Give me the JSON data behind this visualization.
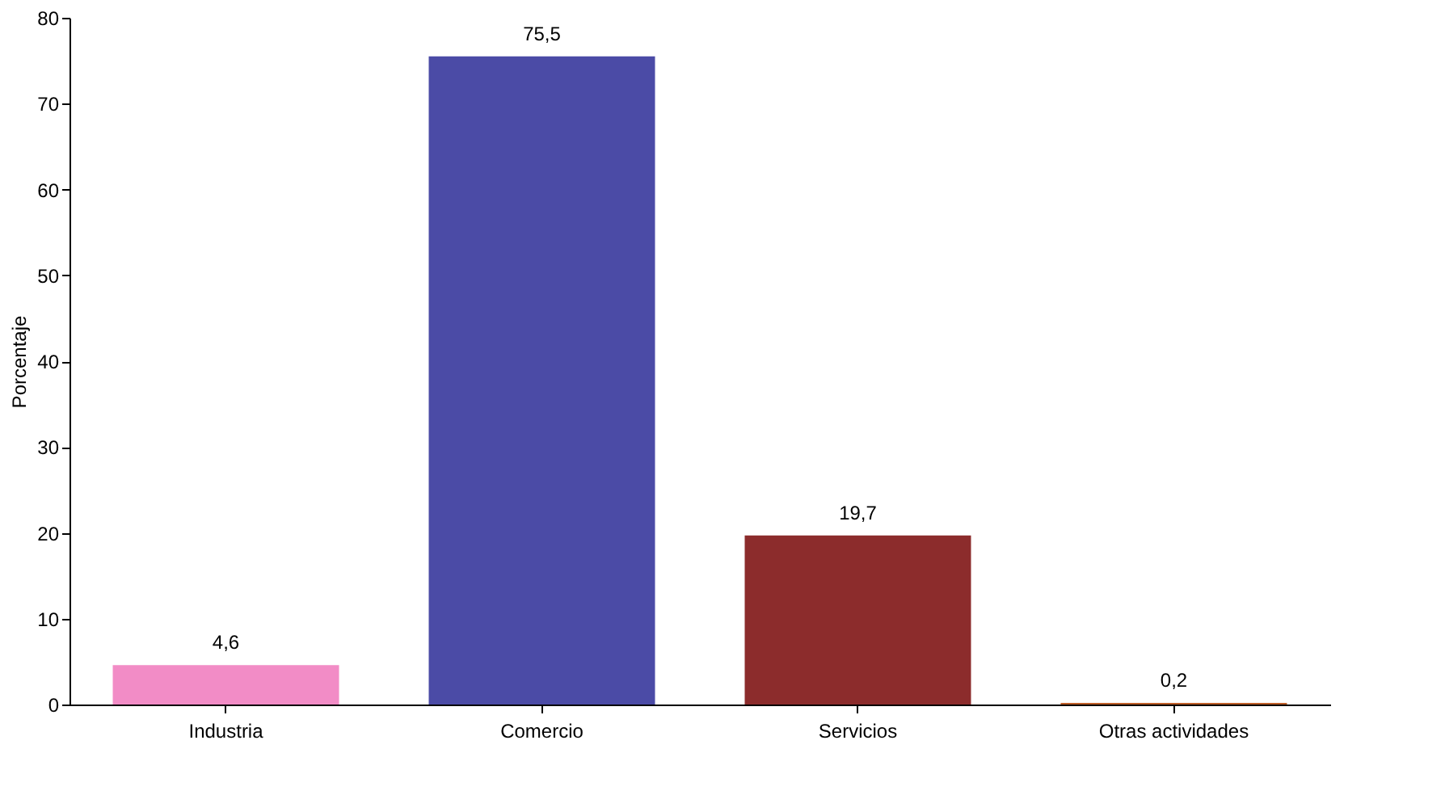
{
  "chart_data": {
    "type": "bar",
    "ylabel": "Porcentaje",
    "categories": [
      "Industria",
      "Comercio",
      "Servicios",
      "Otras actividades"
    ],
    "values": [
      4.6,
      75.5,
      19.7,
      0.2
    ],
    "colors": [
      "#f28cc6",
      "#4b4ba6",
      "#8c2c2c",
      "#c0602a"
    ],
    "value_labels": [
      "4,6",
      "75,5",
      "19,7",
      "0,2"
    ],
    "ylim": [
      0,
      80
    ],
    "yticks": [
      0,
      10,
      20,
      30,
      40,
      50,
      60,
      70,
      80
    ],
    "grid": false,
    "legend": false
  }
}
